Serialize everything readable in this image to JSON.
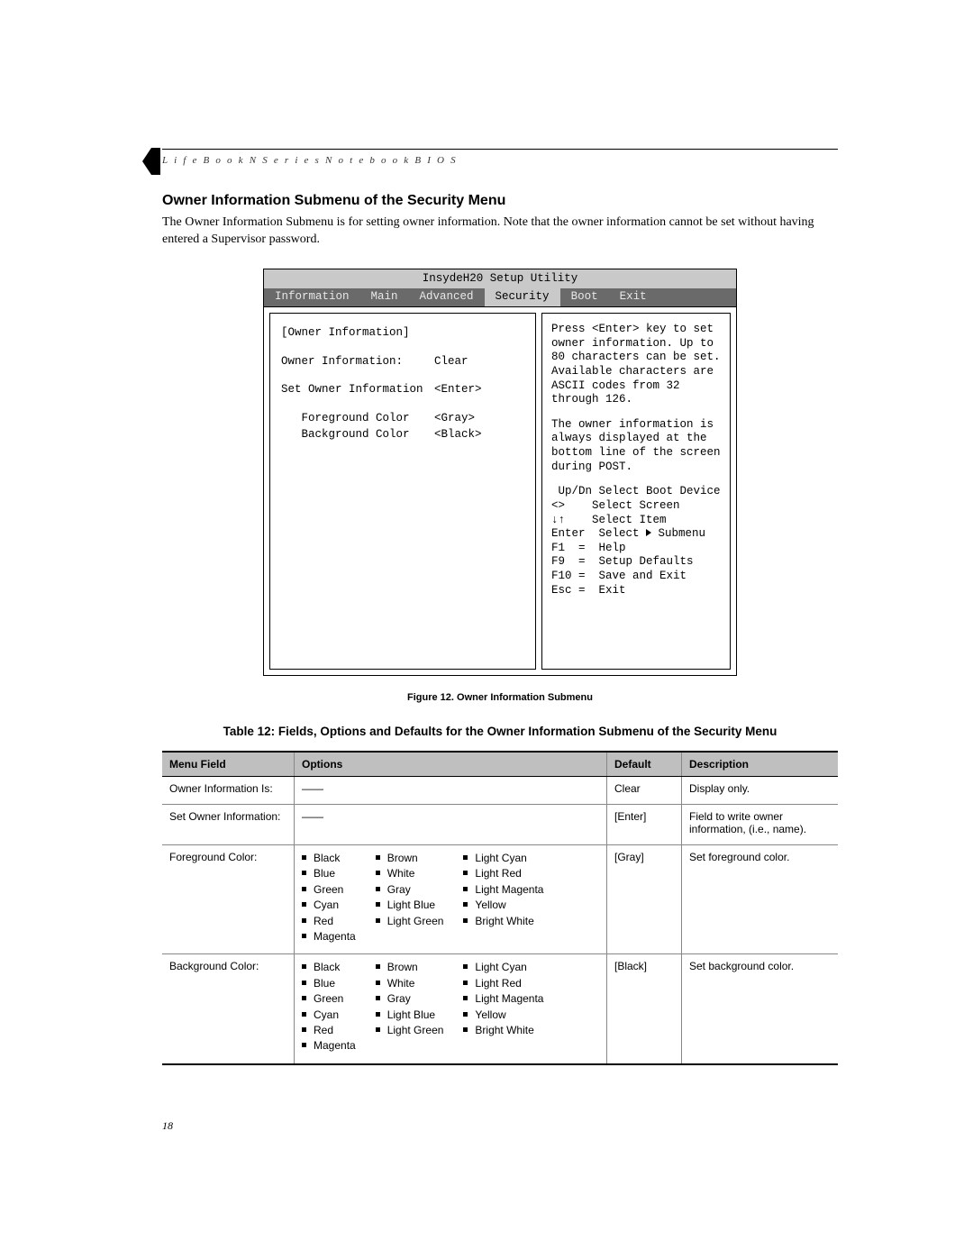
{
  "doc": {
    "running_head": "L i f e B o o k   N   S e r i e s   N o t e b o o k   B I O S",
    "section_title": "Owner Information Submenu of the Security Menu",
    "intro": "The Owner Information Submenu is for setting owner information. Note that the owner information cannot be set without having entered a Supervisor password.",
    "figure_caption": "Figure 12.   Owner Information Submenu",
    "table_caption": "Table 12: Fields, Options and Defaults for the Owner Information Submenu of the Security Menu",
    "page_number": "18"
  },
  "bios": {
    "title": "InsydeH20 Setup Utility",
    "tabs": [
      "Information",
      "Main",
      "Advanced",
      "Security",
      "Boot",
      "Exit"
    ],
    "active_tab_index": 3,
    "tab_bar_bg": "#6a6a6a",
    "tab_bar_fg": "#e8e8e8",
    "title_bg": "#c9c9c9",
    "left": {
      "heading": "[Owner Information]",
      "rows": [
        {
          "label": "Owner Information:",
          "value": "Clear"
        },
        {
          "label": "Set Owner Information",
          "value": "<Enter>"
        },
        {
          "label": "   Foreground Color",
          "value": "<Gray>"
        },
        {
          "label": "   Background Color",
          "value": "<Black>"
        }
      ]
    },
    "right": {
      "help1": "Press <Enter> key to set owner information. Up to 80 characters can be set. Available characters are ASCII codes from 32 through 126.",
      "help2": "The owner information is always displayed at the bottom line of the screen during POST.",
      "keys": [
        " Up/Dn Select Boot Device",
        "<>    Select Screen",
        "↓↑    Select Item",
        "Enter  Select ▶ Submenu",
        "F1  =  Help",
        "F9  =  Setup Defaults",
        "F10 =  Save and Exit",
        "Esc =  Exit"
      ]
    }
  },
  "table": {
    "headers": [
      "Menu Field",
      "Options",
      "Default",
      "Description"
    ],
    "color_options": {
      "col1": [
        "Black",
        "Blue",
        "Green",
        "Cyan",
        "Red",
        "Magenta"
      ],
      "col2": [
        "Brown",
        "White",
        "Gray",
        "Light Blue",
        "Light Green"
      ],
      "col3": [
        "Light Cyan",
        "Light Red",
        "Light Magenta",
        "Yellow",
        "Bright White"
      ]
    },
    "rows": [
      {
        "field": "Owner Information Is:",
        "options_type": "dash",
        "default": "Clear",
        "desc": "Display only."
      },
      {
        "field": "Set Owner Information:",
        "options_type": "dash",
        "default": "[Enter]",
        "desc": "Field to write owner information, (i.e., name)."
      },
      {
        "field": "Foreground Color:",
        "options_type": "colors",
        "default": "[Gray]",
        "desc": "Set foreground color."
      },
      {
        "field": "Background Color:",
        "options_type": "colors",
        "default": "[Black]",
        "desc": "Set background color."
      }
    ]
  }
}
